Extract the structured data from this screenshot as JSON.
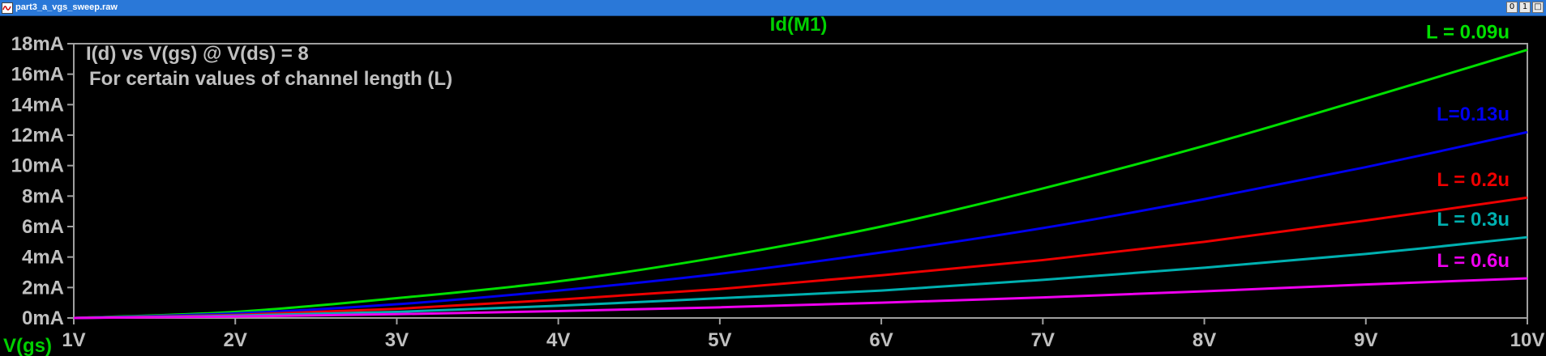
{
  "window": {
    "title": "part3_a_vgs_sweep.raw",
    "buttons": [
      "0",
      "1",
      "□"
    ]
  },
  "colors": {
    "background": "#000000",
    "axis": "#a0a0a0",
    "tick_label": "#c0c0c0",
    "title": "#00d000",
    "annotation": "#c0c0c0"
  },
  "annotations": [
    "I(d) vs V(gs) @ V(ds) = 8",
    "For certain values of channel length (L)"
  ],
  "chart_data": {
    "type": "line",
    "title": "Id(M1)",
    "xlabel": "V(gs)",
    "ylabel": "",
    "xlim": [
      1,
      10
    ],
    "ylim": [
      0,
      18
    ],
    "x_ticks": [
      "1V",
      "2V",
      "3V",
      "4V",
      "5V",
      "6V",
      "7V",
      "8V",
      "9V",
      "10V"
    ],
    "y_ticks": [
      "0mA",
      "2mA",
      "4mA",
      "6mA",
      "8mA",
      "10mA",
      "12mA",
      "14mA",
      "16mA",
      "18mA"
    ],
    "grid": false,
    "x": [
      1,
      2,
      3,
      4,
      5,
      6,
      7,
      8,
      9,
      10
    ],
    "series": [
      {
        "name": "L = 0.09u",
        "color": "#00e000",
        "values": [
          0.0,
          0.4,
          1.3,
          2.4,
          4.0,
          6.0,
          8.5,
          11.3,
          14.4,
          17.6
        ]
      },
      {
        "name": "L=0.13u",
        "color": "#0000ee",
        "values": [
          0.0,
          0.3,
          0.9,
          1.8,
          2.9,
          4.3,
          5.9,
          7.8,
          9.9,
          12.2
        ]
      },
      {
        "name": "L = 0.2u",
        "color": "#ee0000",
        "values": [
          0.0,
          0.2,
          0.6,
          1.2,
          1.9,
          2.8,
          3.8,
          5.0,
          6.4,
          7.9
        ]
      },
      {
        "name": "L = 0.3u",
        "color": "#00b0b0",
        "values": [
          0.0,
          0.15,
          0.4,
          0.8,
          1.3,
          1.8,
          2.5,
          3.3,
          4.2,
          5.3
        ]
      },
      {
        "name": "L = 0.6u",
        "color": "#ee00ee",
        "values": [
          0.0,
          0.1,
          0.25,
          0.45,
          0.7,
          1.0,
          1.35,
          1.75,
          2.2,
          2.6
        ]
      }
    ]
  }
}
